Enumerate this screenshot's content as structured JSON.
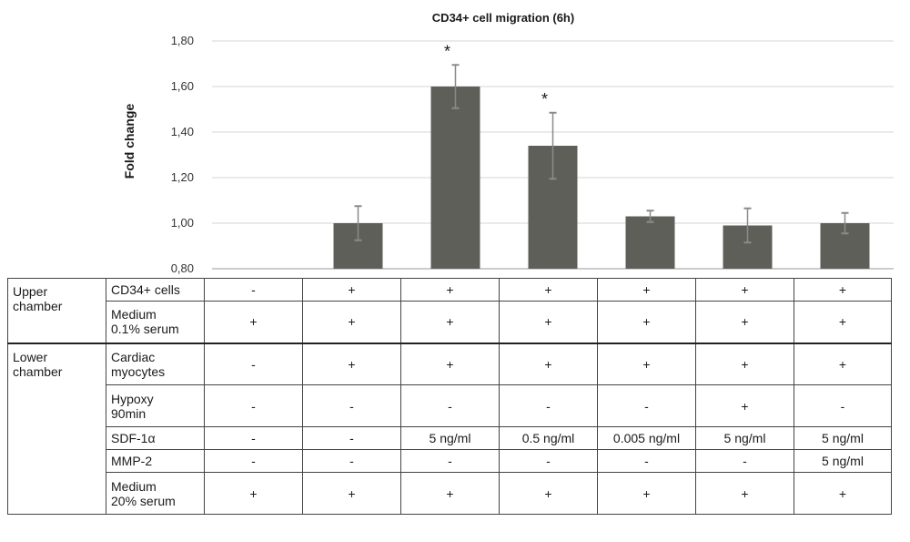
{
  "chart_data": {
    "type": "bar",
    "title": "CD34+ cell migration (6h)",
    "ylabel": "Fold change",
    "xlabel": "",
    "ylim": [
      0.8,
      1.8
    ],
    "yticks": [
      "0,80",
      "1,00",
      "1,20",
      "1,40",
      "1,60",
      "1,80"
    ],
    "yticks_values": [
      0.8,
      1.0,
      1.2,
      1.4,
      1.6,
      1.8
    ],
    "grid": true,
    "bar_color": "#5f5f5a",
    "error_color": "#8a8a8a",
    "values": [
      null,
      1.0,
      1.6,
      1.34,
      1.03,
      0.99,
      1.0
    ],
    "errors": [
      null,
      0.075,
      0.095,
      0.145,
      0.025,
      0.075,
      0.045
    ],
    "significance": [
      "",
      "",
      "*",
      "*",
      "",
      "",
      ""
    ]
  },
  "table": {
    "groups": [
      {
        "label": "Upper\nchamber",
        "rows": [
          {
            "label": "CD34+ cells",
            "cells": [
              "-",
              "+",
              "+",
              "+",
              "+",
              "+",
              "+"
            ]
          },
          {
            "label": "Medium\n0.1% serum",
            "cells": [
              "+",
              "+",
              "+",
              "+",
              "+",
              "+",
              "+"
            ]
          }
        ]
      },
      {
        "label": "Lower\nchamber",
        "rows": [
          {
            "label": "Cardiac\nmyocytes",
            "cells": [
              "-",
              "+",
              "+",
              "+",
              "+",
              "+",
              "+"
            ]
          },
          {
            "label": "Hypoxy\n90min",
            "cells": [
              "-",
              "-",
              "-",
              "-",
              "-",
              "+",
              "-"
            ]
          },
          {
            "label": "SDF-1α",
            "cells": [
              "-",
              "-",
              "5 ng/ml",
              "0.5 ng/ml",
              "0.005 ng/ml",
              "5 ng/ml",
              "5 ng/ml"
            ]
          },
          {
            "label": "MMP-2",
            "cells": [
              "-",
              "-",
              "-",
              "-",
              "-",
              "-",
              "5 ng/ml"
            ]
          },
          {
            "label": "Medium\n20% serum",
            "cells": [
              "+",
              "+",
              "+",
              "+",
              "+",
              "+",
              "+"
            ]
          }
        ]
      }
    ]
  }
}
